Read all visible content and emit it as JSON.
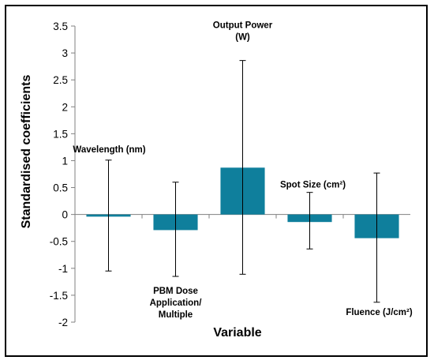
{
  "chart_data": {
    "type": "bar",
    "title": "",
    "xlabel": "Variable",
    "ylabel": "Standardised coefficients",
    "ylim": [
      -2,
      3.5
    ],
    "yticks": [
      "3.5",
      "3",
      "2.5",
      "2",
      "1.5",
      "1",
      "0.5",
      "0",
      "-0.5",
      "-1",
      "-1.5",
      "-2"
    ],
    "grid": false,
    "legend": "none",
    "bar_color": "#0f7f9c",
    "categories": [
      {
        "lines": [
          "Wavelength (nm)"
        ]
      },
      {
        "lines": [
          "PBM Dose",
          "Application/",
          "Multiple"
        ]
      },
      {
        "lines": [
          "Output Power",
          "(W)"
        ]
      },
      {
        "lines": [
          "Spot Size (cm²)"
        ]
      },
      {
        "lines": [
          "Fluence (J/cm²)"
        ]
      }
    ],
    "values": [
      -0.04,
      -0.29,
      0.87,
      -0.14,
      -0.44
    ],
    "error_high": [
      1.01,
      0.6,
      2.86,
      0.41,
      0.77
    ],
    "error_low": [
      -1.05,
      -1.15,
      -1.11,
      -0.64,
      -1.63
    ]
  }
}
